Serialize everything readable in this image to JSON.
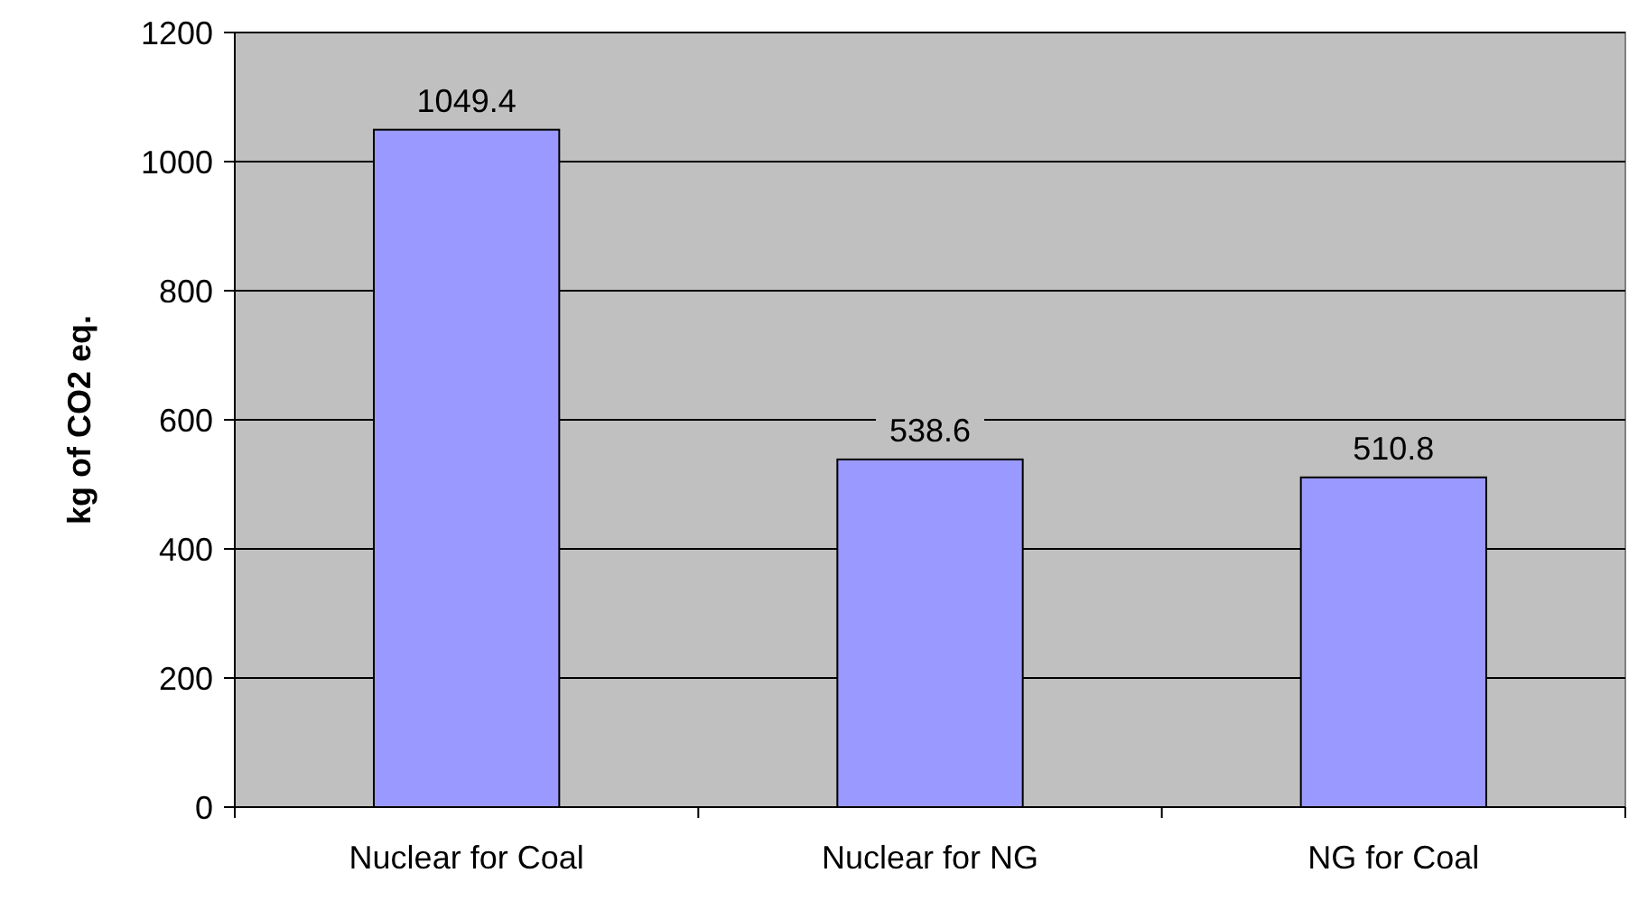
{
  "chart_data": {
    "type": "bar",
    "ylabel": "kg of CO2 eq.",
    "categories": [
      "Nuclear for Coal",
      "Nuclear for NG",
      "NG for Coal"
    ],
    "values": [
      1049.4,
      538.6,
      510.8
    ],
    "color": "#9999ff",
    "ylim": [
      0,
      1200
    ],
    "yticks": [
      0,
      200,
      400,
      600,
      800,
      1000,
      1200
    ],
    "grid": "y",
    "data_labels": true
  }
}
